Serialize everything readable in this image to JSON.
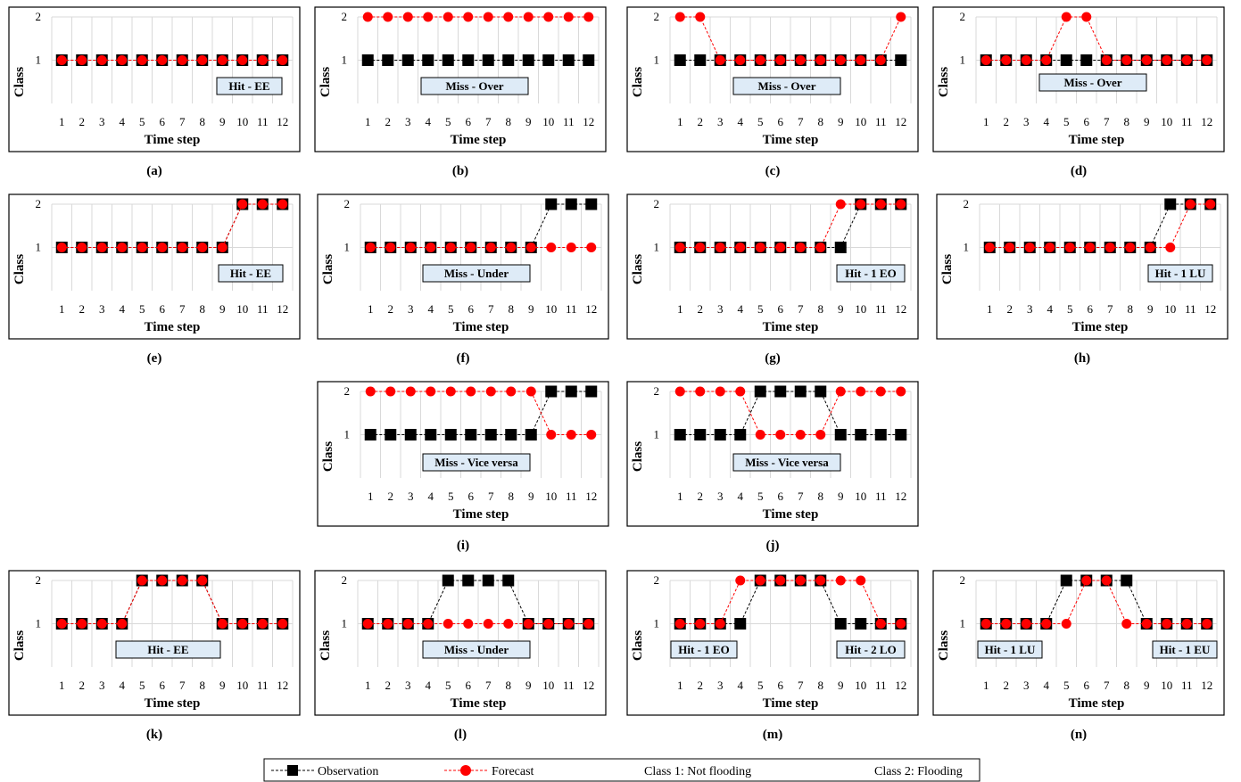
{
  "legend": {
    "observation": "Observation",
    "forecast": "Forecast",
    "class1": "Class 1: Not flooding",
    "class2": "Class 2: Flooding"
  },
  "colors": {
    "observation": "#000000",
    "forecast": "#ff0000",
    "tag_fill": "#deebf7"
  },
  "chart_data": [
    {
      "type": "line",
      "caption": "(a)",
      "xlabel": "Time step",
      "ylabel": "Class",
      "ylim": [
        0,
        2
      ],
      "tag": "Hit - EE",
      "x": [
        1,
        2,
        3,
        4,
        5,
        6,
        7,
        8,
        9,
        10,
        11,
        12
      ],
      "series": [
        {
          "name": "Observation",
          "values": [
            1,
            1,
            1,
            1,
            1,
            1,
            1,
            1,
            1,
            1,
            1,
            1
          ]
        },
        {
          "name": "Forecast",
          "values": [
            1,
            1,
            1,
            1,
            1,
            1,
            1,
            1,
            1,
            1,
            1,
            1
          ]
        }
      ]
    },
    {
      "type": "line",
      "caption": "(b)",
      "xlabel": "Time step",
      "ylabel": "Class",
      "ylim": [
        0,
        2
      ],
      "tag": "Miss - Over",
      "x": [
        1,
        2,
        3,
        4,
        5,
        6,
        7,
        8,
        9,
        10,
        11,
        12
      ],
      "series": [
        {
          "name": "Observation",
          "values": [
            1,
            1,
            1,
            1,
            1,
            1,
            1,
            1,
            1,
            1,
            1,
            1
          ]
        },
        {
          "name": "Forecast",
          "values": [
            2,
            2,
            2,
            2,
            2,
            2,
            2,
            2,
            2,
            2,
            2,
            2
          ]
        }
      ]
    },
    {
      "type": "line",
      "caption": "(c)",
      "xlabel": "Time step",
      "ylabel": "Class",
      "ylim": [
        0,
        2
      ],
      "tag": "Miss - Over",
      "x": [
        1,
        2,
        3,
        4,
        5,
        6,
        7,
        8,
        9,
        10,
        11,
        12
      ],
      "series": [
        {
          "name": "Observation",
          "values": [
            1,
            1,
            1,
            1,
            1,
            1,
            1,
            1,
            1,
            1,
            1,
            1
          ]
        },
        {
          "name": "Forecast",
          "values": [
            2,
            2,
            1,
            1,
            1,
            1,
            1,
            1,
            1,
            1,
            1,
            2
          ]
        }
      ]
    },
    {
      "type": "line",
      "caption": "(d)",
      "xlabel": "Time step",
      "ylabel": "Class",
      "ylim": [
        0,
        2
      ],
      "tag": "Miss - Over",
      "x": [
        1,
        2,
        3,
        4,
        5,
        6,
        7,
        8,
        9,
        10,
        11,
        12
      ],
      "series": [
        {
          "name": "Observation",
          "values": [
            1,
            1,
            1,
            1,
            1,
            1,
            1,
            1,
            1,
            1,
            1,
            1
          ]
        },
        {
          "name": "Forecast",
          "values": [
            1,
            1,
            1,
            1,
            2,
            2,
            1,
            1,
            1,
            1,
            1,
            1
          ]
        }
      ]
    },
    {
      "type": "line",
      "caption": "(e)",
      "xlabel": "Time step",
      "ylabel": "Class",
      "ylim": [
        0,
        2
      ],
      "tag": "Hit - EE",
      "x": [
        1,
        2,
        3,
        4,
        5,
        6,
        7,
        8,
        9,
        10,
        11,
        12
      ],
      "series": [
        {
          "name": "Observation",
          "values": [
            1,
            1,
            1,
            1,
            1,
            1,
            1,
            1,
            1,
            2,
            2,
            2
          ]
        },
        {
          "name": "Forecast",
          "values": [
            1,
            1,
            1,
            1,
            1,
            1,
            1,
            1,
            1,
            2,
            2,
            2
          ]
        }
      ]
    },
    {
      "type": "line",
      "caption": "(f)",
      "xlabel": "Time step",
      "ylabel": "Class",
      "ylim": [
        0,
        2
      ],
      "tag": "Miss - Under",
      "x": [
        1,
        2,
        3,
        4,
        5,
        6,
        7,
        8,
        9,
        10,
        11,
        12
      ],
      "series": [
        {
          "name": "Observation",
          "values": [
            1,
            1,
            1,
            1,
            1,
            1,
            1,
            1,
            1,
            2,
            2,
            2
          ]
        },
        {
          "name": "Forecast",
          "values": [
            1,
            1,
            1,
            1,
            1,
            1,
            1,
            1,
            1,
            1,
            1,
            1
          ]
        }
      ]
    },
    {
      "type": "line",
      "caption": "(g)",
      "xlabel": "Time step",
      "ylabel": "Class",
      "ylim": [
        0,
        2
      ],
      "tag": "Hit - 1 EO",
      "x": [
        1,
        2,
        3,
        4,
        5,
        6,
        7,
        8,
        9,
        10,
        11,
        12
      ],
      "series": [
        {
          "name": "Observation",
          "values": [
            1,
            1,
            1,
            1,
            1,
            1,
            1,
            1,
            1,
            2,
            2,
            2
          ]
        },
        {
          "name": "Forecast",
          "values": [
            1,
            1,
            1,
            1,
            1,
            1,
            1,
            1,
            2,
            2,
            2,
            2
          ]
        }
      ]
    },
    {
      "type": "line",
      "caption": "(h)",
      "xlabel": "Time step",
      "ylabel": "Class",
      "ylim": [
        0,
        2
      ],
      "tag": "Hit - 1 LU",
      "x": [
        1,
        2,
        3,
        4,
        5,
        6,
        7,
        8,
        9,
        10,
        11,
        12
      ],
      "series": [
        {
          "name": "Observation",
          "values": [
            1,
            1,
            1,
            1,
            1,
            1,
            1,
            1,
            1,
            2,
            2,
            2
          ]
        },
        {
          "name": "Forecast",
          "values": [
            1,
            1,
            1,
            1,
            1,
            1,
            1,
            1,
            1,
            1,
            2,
            2
          ]
        }
      ]
    },
    {
      "type": "line",
      "caption": "(i)",
      "xlabel": "Time step",
      "ylabel": "Class",
      "ylim": [
        0,
        2
      ],
      "tag": "Miss - Vice versa",
      "x": [
        1,
        2,
        3,
        4,
        5,
        6,
        7,
        8,
        9,
        10,
        11,
        12
      ],
      "series": [
        {
          "name": "Observation",
          "values": [
            1,
            1,
            1,
            1,
            1,
            1,
            1,
            1,
            1,
            2,
            2,
            2
          ]
        },
        {
          "name": "Forecast",
          "values": [
            2,
            2,
            2,
            2,
            2,
            2,
            2,
            2,
            2,
            1,
            1,
            1
          ]
        }
      ]
    },
    {
      "type": "line",
      "caption": "(j)",
      "xlabel": "Time step",
      "ylabel": "Class",
      "ylim": [
        0,
        2
      ],
      "tag": "Miss - Vice versa",
      "x": [
        1,
        2,
        3,
        4,
        5,
        6,
        7,
        8,
        9,
        10,
        11,
        12
      ],
      "series": [
        {
          "name": "Observation",
          "values": [
            1,
            1,
            1,
            1,
            2,
            2,
            2,
            2,
            1,
            1,
            1,
            1
          ]
        },
        {
          "name": "Forecast",
          "values": [
            2,
            2,
            2,
            2,
            1,
            1,
            1,
            1,
            2,
            2,
            2,
            2
          ]
        }
      ]
    },
    {
      "type": "line",
      "caption": "(k)",
      "xlabel": "Time step",
      "ylabel": "Class",
      "ylim": [
        0,
        2
      ],
      "tag": "Hit - EE",
      "x": [
        1,
        2,
        3,
        4,
        5,
        6,
        7,
        8,
        9,
        10,
        11,
        12
      ],
      "series": [
        {
          "name": "Observation",
          "values": [
            1,
            1,
            1,
            1,
            2,
            2,
            2,
            2,
            1,
            1,
            1,
            1
          ]
        },
        {
          "name": "Forecast",
          "values": [
            1,
            1,
            1,
            1,
            2,
            2,
            2,
            2,
            1,
            1,
            1,
            1
          ]
        }
      ]
    },
    {
      "type": "line",
      "caption": "(l)",
      "xlabel": "Time step",
      "ylabel": "Class",
      "ylim": [
        0,
        2
      ],
      "tag": "Miss - Under",
      "x": [
        1,
        2,
        3,
        4,
        5,
        6,
        7,
        8,
        9,
        10,
        11,
        12
      ],
      "series": [
        {
          "name": "Observation",
          "values": [
            1,
            1,
            1,
            1,
            2,
            2,
            2,
            2,
            1,
            1,
            1,
            1
          ]
        },
        {
          "name": "Forecast",
          "values": [
            1,
            1,
            1,
            1,
            1,
            1,
            1,
            1,
            1,
            1,
            1,
            1
          ]
        }
      ]
    },
    {
      "type": "line",
      "caption": "(m)",
      "xlabel": "Time step",
      "ylabel": "Class",
      "ylim": [
        0,
        2
      ],
      "tags": [
        "Hit - 1 EO",
        "Hit - 2 LO"
      ],
      "x": [
        1,
        2,
        3,
        4,
        5,
        6,
        7,
        8,
        9,
        10,
        11,
        12
      ],
      "series": [
        {
          "name": "Observation",
          "values": [
            1,
            1,
            1,
            1,
            2,
            2,
            2,
            2,
            1,
            1,
            1,
            1
          ]
        },
        {
          "name": "Forecast",
          "values": [
            1,
            1,
            1,
            2,
            2,
            2,
            2,
            2,
            2,
            2,
            1,
            1
          ]
        }
      ]
    },
    {
      "type": "line",
      "caption": "(n)",
      "xlabel": "Time step",
      "ylabel": "Class",
      "ylim": [
        0,
        2
      ],
      "tags": [
        "Hit - 1 LU",
        "Hit - 1 EU"
      ],
      "x": [
        1,
        2,
        3,
        4,
        5,
        6,
        7,
        8,
        9,
        10,
        11,
        12
      ],
      "series": [
        {
          "name": "Observation",
          "values": [
            1,
            1,
            1,
            1,
            2,
            2,
            2,
            2,
            1,
            1,
            1,
            1
          ]
        },
        {
          "name": "Forecast",
          "values": [
            1,
            1,
            1,
            1,
            1,
            2,
            2,
            1,
            1,
            1,
            1,
            1
          ]
        }
      ]
    }
  ]
}
